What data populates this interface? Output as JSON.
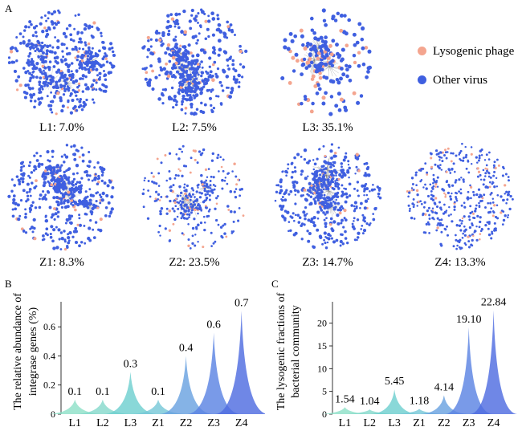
{
  "panels": {
    "a": "A",
    "b": "B",
    "c": "C"
  },
  "legend": [
    {
      "label": "Lysogenic phage",
      "color": "#f4a58f"
    },
    {
      "label": "Other virus",
      "color": "#3f5fe0"
    }
  ],
  "networks": [
    {
      "id": "L1",
      "label": "L1: 7.0%"
    },
    {
      "id": "L2",
      "label": "L2: 7.5%"
    },
    {
      "id": "L3",
      "label": "L3: 35.1%"
    },
    {
      "id": "Z1",
      "label": "Z1: 8.3%"
    },
    {
      "id": "Z2",
      "label": "Z2: 23.5%"
    },
    {
      "id": "Z3",
      "label": "Z3: 14.7%"
    },
    {
      "id": "Z4",
      "label": "Z4: 13.3%"
    }
  ],
  "chart_data": [
    {
      "type": "area",
      "panel": "B",
      "ylabel": "The relative abundance of integrase genes  (%)",
      "xlabel": "",
      "categories": [
        "L1",
        "L2",
        "L3",
        "Z1",
        "Z2",
        "Z3",
        "Z4"
      ],
      "values": [
        0.1,
        0.1,
        0.3,
        0.1,
        0.4,
        0.6,
        0.7
      ],
      "peak_values": [
        0.1,
        0.1,
        0.29,
        0.1,
        0.4,
        0.56,
        0.71
      ],
      "data_labels": [
        "0.1",
        "0.1",
        "0.3",
        "0.1",
        "0.4",
        "0.6",
        "0.7"
      ],
      "yticks": [
        "0",
        "0.2",
        "0.4",
        "0.6"
      ],
      "ylim": [
        0,
        0.75
      ],
      "colors": [
        "#8fe0c8",
        "#86d9cc",
        "#6fcfcf",
        "#78c8d8",
        "#6aa2e0",
        "#5c84e3",
        "#4f6de0"
      ]
    },
    {
      "type": "area",
      "panel": "C",
      "ylabel": "The lysogenic fractions of bacterial community",
      "xlabel": "",
      "categories": [
        "L1",
        "L2",
        "L3",
        "Z1",
        "Z2",
        "Z3",
        "Z4"
      ],
      "values": [
        1.54,
        1.04,
        5.45,
        1.18,
        4.14,
        19.1,
        22.84
      ],
      "data_labels": [
        "1.54",
        "1.04",
        "5.45",
        "1.18",
        "4.14",
        "19.10",
        "22.84"
      ],
      "yticks": [
        "0",
        "5",
        "10",
        "15",
        "20"
      ],
      "ylim": [
        0,
        24
      ],
      "colors": [
        "#8fe0c8",
        "#86d9cc",
        "#6fcfcf",
        "#78c8d8",
        "#6aa2e0",
        "#5c84e3",
        "#4f6de0"
      ]
    }
  ]
}
